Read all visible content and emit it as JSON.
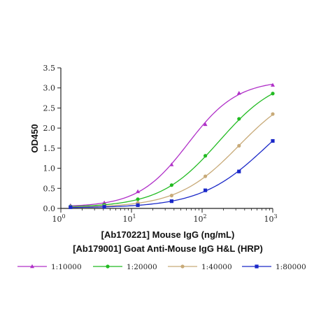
{
  "chart_data": {
    "type": "line",
    "ylabel": "OD450",
    "xlabel": "[Ab170221] Mouse IgG (ng/mL)",
    "xlabel2": "[Ab179001] Goat Anti-Mouse IgG H&L (HRP)",
    "x_scale": "log",
    "xlim": [
      1,
      1000
    ],
    "ylim": [
      0,
      3.5
    ],
    "x_ticks": [
      {
        "value": 1,
        "base": "10",
        "exp": "0"
      },
      {
        "value": 10,
        "base": "10",
        "exp": "1"
      },
      {
        "value": 100,
        "base": "10",
        "exp": "2"
      },
      {
        "value": 1000,
        "base": "10",
        "exp": "3"
      }
    ],
    "y_ticks": [
      {
        "value": 0,
        "label": "0.0"
      },
      {
        "value": 0.5,
        "label": "0.5"
      },
      {
        "value": 1.0,
        "label": "1.0"
      },
      {
        "value": 1.5,
        "label": "1.5"
      },
      {
        "value": 2.0,
        "label": "2.0"
      },
      {
        "value": 2.5,
        "label": "2.5"
      },
      {
        "value": 3.0,
        "label": "3.0"
      },
      {
        "value": 3.5,
        "label": "3.5"
      }
    ],
    "grid": false,
    "legend_position": "bottom",
    "x": [
      1.37,
      4.12,
      12.3,
      37.0,
      111,
      333,
      1000
    ],
    "series": [
      {
        "name": "1:10000",
        "color": "#b030c8",
        "marker": "triangle",
        "values": [
          0.07,
          0.14,
          0.42,
          1.09,
          2.09,
          2.87,
          3.07
        ]
      },
      {
        "name": "1:20000",
        "color": "#22bb22",
        "marker": "circle",
        "values": [
          0.05,
          0.09,
          0.23,
          0.58,
          1.31,
          2.23,
          2.86
        ]
      },
      {
        "name": "1:40000",
        "color": "#c8aa78",
        "marker": "circle",
        "values": [
          0.04,
          0.06,
          0.14,
          0.32,
          0.8,
          1.56,
          2.35
        ]
      },
      {
        "name": "1:80000",
        "color": "#1a28c8",
        "marker": "square",
        "values": [
          0.03,
          0.04,
          0.08,
          0.18,
          0.45,
          0.92,
          1.68
        ]
      }
    ]
  }
}
